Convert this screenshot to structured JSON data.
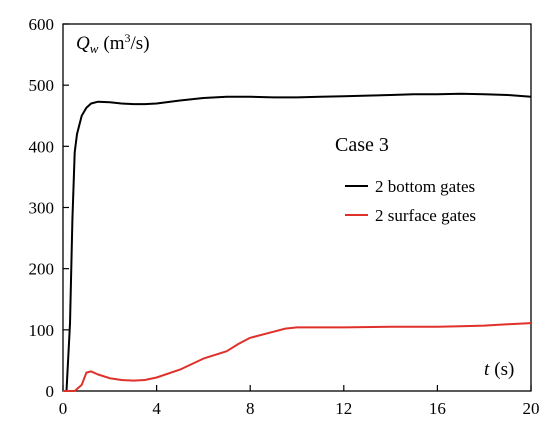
{
  "chart_data": {
    "type": "line",
    "title": "",
    "annotation": "Case 3",
    "ylabel": {
      "symbol": "Q",
      "subscript": "w",
      "unit_pre": "(m",
      "unit_sup": "3",
      "unit_post": "/s)"
    },
    "xlabel": {
      "symbol": "t",
      "unit": "(s)"
    },
    "xlim": [
      0,
      20
    ],
    "ylim": [
      0,
      600
    ],
    "x_ticks": [
      0,
      4,
      8,
      12,
      16,
      20
    ],
    "y_ticks": [
      0,
      100,
      200,
      300,
      400,
      500,
      600
    ],
    "x_tick_labels": [
      "0",
      "4",
      "8",
      "12",
      "16",
      "20"
    ],
    "y_tick_labels": [
      "0",
      "100",
      "200",
      "300",
      "400",
      "500",
      "600"
    ],
    "grid": false,
    "legend_position": "right",
    "series": [
      {
        "name": "2 bottom gates",
        "color": "#000000",
        "points": [
          [
            0,
            0
          ],
          [
            0.15,
            0
          ],
          [
            0.3,
            110
          ],
          [
            0.4,
            280
          ],
          [
            0.5,
            390
          ],
          [
            0.6,
            420
          ],
          [
            0.8,
            450
          ],
          [
            1.0,
            463
          ],
          [
            1.2,
            470
          ],
          [
            1.5,
            473
          ],
          [
            2.0,
            472
          ],
          [
            2.5,
            470
          ],
          [
            3.0,
            469
          ],
          [
            3.5,
            469
          ],
          [
            4.0,
            470
          ],
          [
            5.0,
            475
          ],
          [
            6.0,
            479
          ],
          [
            7.0,
            481
          ],
          [
            8.0,
            481
          ],
          [
            9.0,
            480
          ],
          [
            10.0,
            480
          ],
          [
            11.0,
            481
          ],
          [
            12.0,
            482
          ],
          [
            13.0,
            483
          ],
          [
            14.0,
            484
          ],
          [
            15.0,
            485
          ],
          [
            16.0,
            485
          ],
          [
            17.0,
            486
          ],
          [
            18.0,
            485
          ],
          [
            19.0,
            484
          ],
          [
            20.0,
            481
          ]
        ]
      },
      {
        "name": "2 surface gates",
        "color": "#e0302a",
        "points": [
          [
            0,
            0
          ],
          [
            0.5,
            0
          ],
          [
            0.8,
            10
          ],
          [
            1.0,
            30
          ],
          [
            1.2,
            32
          ],
          [
            1.5,
            27
          ],
          [
            2.0,
            21
          ],
          [
            2.5,
            18
          ],
          [
            3.0,
            17
          ],
          [
            3.5,
            18
          ],
          [
            4.0,
            22
          ],
          [
            5.0,
            35
          ],
          [
            6.0,
            53
          ],
          [
            7.0,
            65
          ],
          [
            7.5,
            77
          ],
          [
            8.0,
            87
          ],
          [
            9.0,
            97
          ],
          [
            9.5,
            102
          ],
          [
            10.0,
            104
          ],
          [
            12.0,
            104
          ],
          [
            14.0,
            105
          ],
          [
            16.0,
            105
          ],
          [
            17.0,
            106
          ],
          [
            18.0,
            107
          ],
          [
            19.0,
            109
          ],
          [
            20.0,
            111
          ]
        ]
      }
    ]
  }
}
